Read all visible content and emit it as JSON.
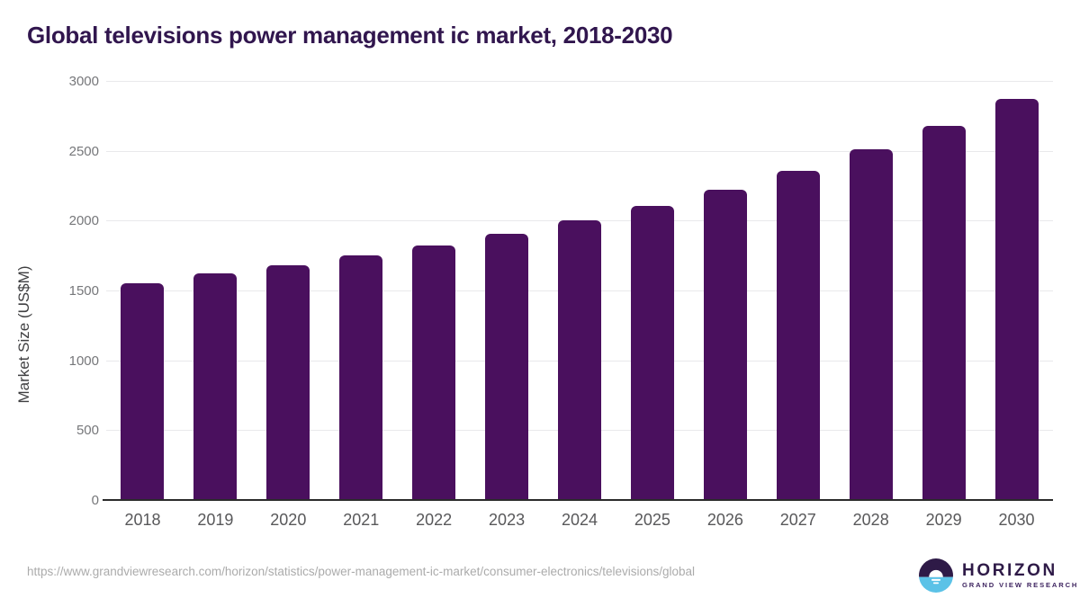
{
  "header": {
    "title": "Global televisions power management ic market, 2018-2030"
  },
  "chart_data": {
    "type": "bar",
    "title": "Global televisions power management ic market, 2018-2030",
    "categories": [
      "2018",
      "2019",
      "2020",
      "2021",
      "2022",
      "2023",
      "2024",
      "2025",
      "2026",
      "2027",
      "2028",
      "2029",
      "2030"
    ],
    "values": [
      1545,
      1615,
      1675,
      1745,
      1815,
      1900,
      1995,
      2100,
      2215,
      2350,
      2505,
      2670,
      2865
    ],
    "xlabel": "",
    "ylabel": "Market Size (US$M)",
    "ylim": [
      0,
      3000
    ],
    "ytick_step": 500,
    "grid": true,
    "legend": "none",
    "bar_color": "#4a105e"
  },
  "colors": {
    "title": "#31164e",
    "bar": "#4a105e",
    "gridline": "#e9e9eb",
    "axis_line": "#2b2b2b",
    "y_tick_text": "#76777a",
    "x_tick_text": "#58585a",
    "url_text": "#ababab",
    "logo_dark": "#2e1a47",
    "logo_blue": "#5bc2e7"
  },
  "footer": {
    "source_url": "https://www.grandviewresearch.com/horizon/statistics/power-management-ic-market/consumer-electronics/televisions/global",
    "logo": {
      "brand": "HORIZON",
      "subbrand": "GRAND VIEW RESEARCH"
    }
  }
}
